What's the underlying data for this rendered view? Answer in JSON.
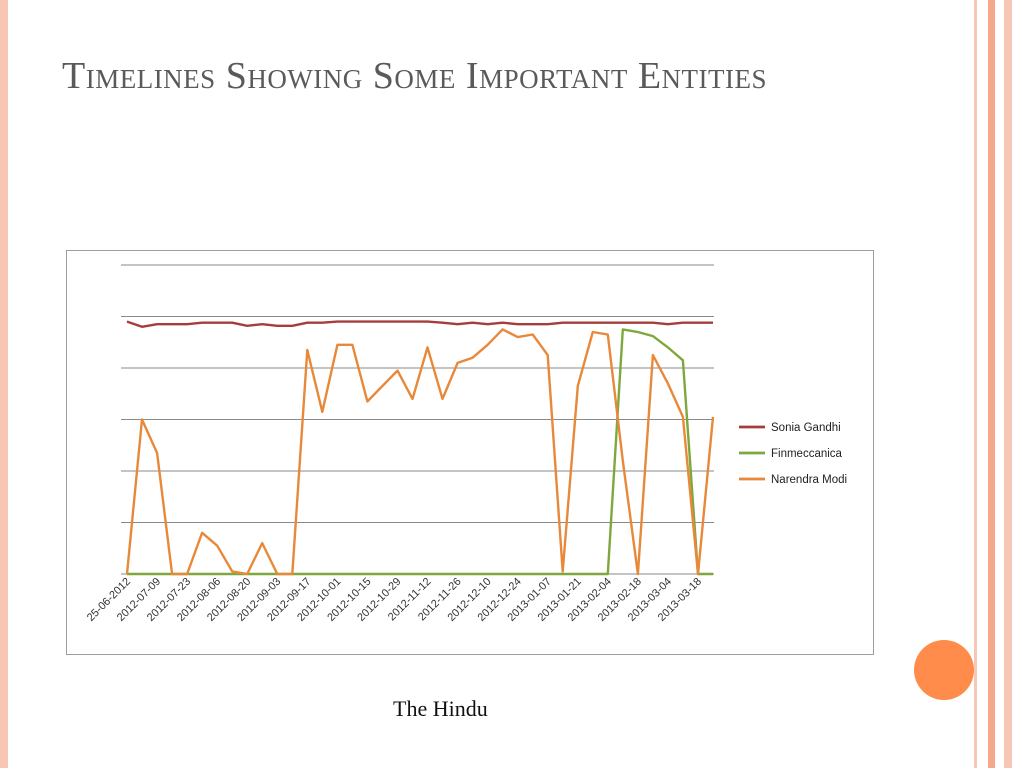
{
  "slide": {
    "title": "Timelines Showing Some Important Entities",
    "caption": "The Hindu"
  },
  "theme": {
    "title_color": "#5a5a5a",
    "accent_circle": "#ff8c4a",
    "stripe_colors": [
      "#f7c6b5",
      "#f4a98c",
      "#f7c6b5"
    ]
  },
  "chart_data": {
    "type": "line",
    "title": "",
    "xlabel": "",
    "ylabel": "",
    "ylim": [
      0,
      6
    ],
    "grid": true,
    "legend_position": "right",
    "x": [
      "25-06-2012",
      "2012-07-02",
      "2012-07-09",
      "2012-07-16",
      "2012-07-23",
      "2012-07-30",
      "2012-08-06",
      "2012-08-13",
      "2012-08-20",
      "2012-08-27",
      "2012-09-03",
      "2012-09-10",
      "2012-09-17",
      "2012-09-24",
      "2012-10-01",
      "2012-10-08",
      "2012-10-15",
      "2012-10-22",
      "2012-10-29",
      "2012-11-05",
      "2012-11-12",
      "2012-11-19",
      "2012-11-26",
      "2012-12-03",
      "2012-12-10",
      "2012-12-17",
      "2012-12-24",
      "2012-12-31",
      "2013-01-07",
      "2013-01-14",
      "2013-01-21",
      "2013-01-28",
      "2013-02-04",
      "2013-02-11",
      "2013-02-18",
      "2013-02-25",
      "2013-03-04",
      "2013-03-11",
      "2013-03-18",
      "2013-03-25"
    ],
    "x_tick_labels": [
      "25-06-2012",
      "2012-07-09",
      "2012-07-23",
      "2012-08-06",
      "2012-08-20",
      "2012-09-03",
      "2012-09-17",
      "2012-10-01",
      "2012-10-15",
      "2012-10-29",
      "2012-11-12",
      "2012-11-26",
      "2012-12-10",
      "2012-12-24",
      "2013-01-07",
      "2013-01-21",
      "2013-02-04",
      "2013-02-18",
      "2013-03-04",
      "2013-03-18"
    ],
    "series": [
      {
        "name": "Sonia Gandhi",
        "color": "#a63d3d",
        "values": [
          4.9,
          4.8,
          4.85,
          4.85,
          4.85,
          4.88,
          4.88,
          4.88,
          4.82,
          4.85,
          4.82,
          4.82,
          4.88,
          4.88,
          4.9,
          4.9,
          4.9,
          4.9,
          4.9,
          4.9,
          4.9,
          4.88,
          4.85,
          4.88,
          4.85,
          4.88,
          4.85,
          4.85,
          4.85,
          4.88,
          4.88,
          4.88,
          4.88,
          4.88,
          4.88,
          4.88,
          4.85,
          4.88,
          4.88,
          4.88
        ]
      },
      {
        "name": "Finmeccanica",
        "color": "#7ea83e",
        "values": [
          0,
          0,
          0,
          0,
          0,
          0,
          0,
          0,
          0,
          0,
          0,
          0,
          0,
          0,
          0,
          0,
          0,
          0,
          0,
          0,
          0,
          0,
          0,
          0,
          0,
          0,
          0,
          0,
          0,
          0,
          0,
          0,
          0,
          4.75,
          4.7,
          4.62,
          4.4,
          4.15,
          0,
          0
        ]
      },
      {
        "name": "Narendra Modi",
        "color": "#e8893a",
        "values": [
          0,
          3.0,
          2.35,
          0,
          0,
          0.8,
          0.55,
          0.05,
          0,
          0.6,
          0,
          0,
          4.35,
          3.15,
          4.45,
          4.45,
          3.35,
          3.65,
          3.95,
          3.4,
          4.4,
          3.4,
          4.1,
          4.2,
          4.45,
          4.75,
          4.6,
          4.65,
          4.25,
          0.05,
          3.65,
          4.7,
          4.65,
          2.2,
          0,
          4.25,
          3.7,
          3.05,
          0,
          3.05
        ]
      }
    ]
  }
}
